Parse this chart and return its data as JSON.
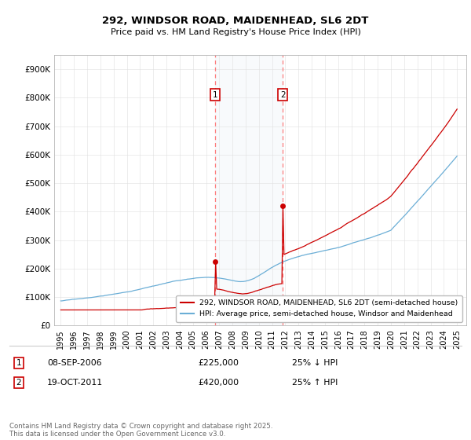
{
  "title": "292, WINDSOR ROAD, MAIDENHEAD, SL6 2DT",
  "subtitle": "Price paid vs. HM Land Registry's House Price Index (HPI)",
  "legend_line1": "292, WINDSOR ROAD, MAIDENHEAD, SL6 2DT (semi-detached house)",
  "legend_line2": "HPI: Average price, semi-detached house, Windsor and Maidenhead",
  "footnote": "Contains HM Land Registry data © Crown copyright and database right 2025.\nThis data is licensed under the Open Government Licence v3.0.",
  "transaction1_date": "08-SEP-2006",
  "transaction1_price": "£225,000",
  "transaction1_hpi": "25% ↓ HPI",
  "transaction2_date": "19-OCT-2011",
  "transaction2_price": "£420,000",
  "transaction2_hpi": "25% ↑ HPI",
  "transaction1_x": 2006.69,
  "transaction2_x": 2011.8,
  "transaction1_y": 225000,
  "transaction2_y": 420000,
  "hpi_color": "#6baed6",
  "price_color": "#cc0000",
  "vline_color": "#ff6666",
  "shade_color": "#dce6f1",
  "background_color": "#ffffff",
  "grid_color": "#e0e0e0",
  "ylim": [
    0,
    950000
  ],
  "xlim_start": 1994.5,
  "xlim_end": 2025.7,
  "yticks": [
    0,
    100000,
    200000,
    300000,
    400000,
    500000,
    600000,
    700000,
    800000,
    900000
  ],
  "ytick_labels": [
    "£0",
    "£100K",
    "£200K",
    "£300K",
    "£400K",
    "£500K",
    "£600K",
    "£700K",
    "£800K",
    "£900K"
  ],
  "xticks": [
    1995,
    1996,
    1997,
    1998,
    1999,
    2000,
    2001,
    2002,
    2003,
    2004,
    2005,
    2006,
    2007,
    2008,
    2009,
    2010,
    2011,
    2012,
    2013,
    2014,
    2015,
    2016,
    2017,
    2018,
    2019,
    2020,
    2021,
    2022,
    2023,
    2024,
    2025
  ]
}
